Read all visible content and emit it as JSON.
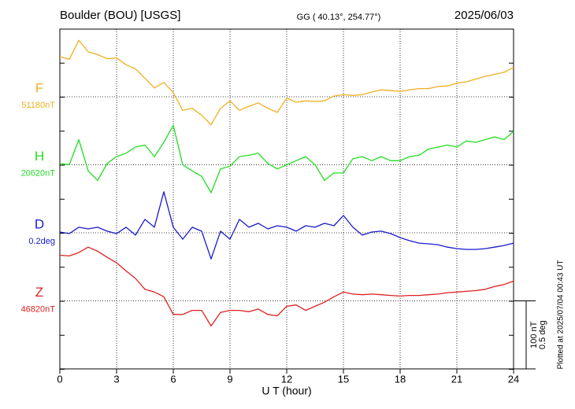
{
  "chart_data": {
    "type": "line",
    "title": "Boulder (BOU)  [USGS]",
    "subtitle": "GG ( 40.13°, 254.77°)",
    "date": "2025/06/03",
    "xlabel": "U T (hour)",
    "footnote": "Plotted at 2025/07/04 00:43 UT",
    "xlim": [
      0,
      24
    ],
    "xticks": [
      0,
      3,
      6,
      9,
      12,
      15,
      18,
      21,
      24
    ],
    "grid": true,
    "scale": [
      {
        "value": 100,
        "label": "100 nT"
      },
      {
        "value": 0.5,
        "label": "0.5 deg"
      }
    ],
    "x": [
      0,
      0.5,
      1,
      1.5,
      2,
      2.5,
      3,
      3.5,
      4,
      4.5,
      5,
      5.5,
      6,
      6.5,
      7,
      7.5,
      8,
      8.5,
      9,
      9.5,
      10,
      10.5,
      11,
      11.5,
      12,
      12.5,
      13,
      13.5,
      14,
      14.5,
      15,
      15.5,
      16,
      16.5,
      17,
      17.5,
      18,
      18.5,
      19,
      19.5,
      20,
      20.5,
      21,
      21.5,
      22,
      22.5,
      23,
      23.5,
      24
    ],
    "series": [
      {
        "name": "F",
        "color": "#f0b020",
        "baseline": {
          "value": 51180,
          "label": "51180nT"
        },
        "values": [
          51239,
          51235,
          51263,
          51246,
          51242,
          51236,
          51237,
          51227,
          51221,
          51207,
          51193,
          51201,
          51186,
          51160,
          51163,
          51153,
          51139,
          51163,
          51174,
          51160,
          51166,
          51171,
          51163,
          51157,
          51178,
          51172,
          51174,
          51173,
          51174,
          51181,
          51183,
          51182,
          51183,
          51187,
          51190,
          51189,
          51188,
          51190,
          51192,
          51192,
          51195,
          51196,
          51200,
          51202,
          51206,
          51210,
          51213,
          51216,
          51223
        ]
      },
      {
        "name": "H",
        "color": "#22dd22",
        "baseline": {
          "value": 20620,
          "label": "20620nT"
        },
        "values": [
          20622,
          20620,
          20657,
          20611,
          20597,
          20622,
          20632,
          20637,
          20646,
          20649,
          20632,
          20653,
          20678,
          20620,
          20611,
          20603,
          20579,
          20614,
          20618,
          20632,
          20634,
          20637,
          20622,
          20614,
          20620,
          20626,
          20632,
          20620,
          20597,
          20608,
          20608,
          20629,
          20632,
          20626,
          20632,
          20626,
          20626,
          20632,
          20634,
          20643,
          20646,
          20649,
          20646,
          20655,
          20653,
          20657,
          20661,
          20657,
          20669
        ]
      },
      {
        "name": "D",
        "color": "#1a1acc",
        "baseline": {
          "value": 0.2,
          "label": "0.2deg"
        },
        "values": [
          0.206,
          0.194,
          0.241,
          0.229,
          0.241,
          0.212,
          0.194,
          0.241,
          0.183,
          0.299,
          0.241,
          0.502,
          0.241,
          0.153,
          0.241,
          0.212,
          0.008,
          0.212,
          0.153,
          0.299,
          0.241,
          0.27,
          0.229,
          0.252,
          0.241,
          0.212,
          0.252,
          0.241,
          0.27,
          0.252,
          0.328,
          0.241,
          0.183,
          0.206,
          0.212,
          0.194,
          0.165,
          0.142,
          0.124,
          0.119,
          0.113,
          0.095,
          0.084,
          0.078,
          0.078,
          0.084,
          0.095,
          0.107,
          0.124
        ]
      },
      {
        "name": "Z",
        "color": "#e02020",
        "baseline": {
          "value": 46820,
          "label": "46820nT"
        },
        "values": [
          46887,
          46886,
          46891,
          46899,
          46893,
          46884,
          46876,
          46864,
          46853,
          46837,
          46833,
          46826,
          46800,
          46800,
          46806,
          46806,
          46783,
          46803,
          46806,
          46806,
          46804,
          46808,
          46800,
          46798,
          46812,
          46814,
          46806,
          46812,
          46818,
          46826,
          46833,
          46830,
          46829,
          46830,
          46829,
          46828,
          46827,
          46828,
          46828,
          46829,
          46830,
          46832,
          46833,
          46834,
          46835,
          46837,
          46841,
          46844,
          46849
        ]
      }
    ]
  }
}
